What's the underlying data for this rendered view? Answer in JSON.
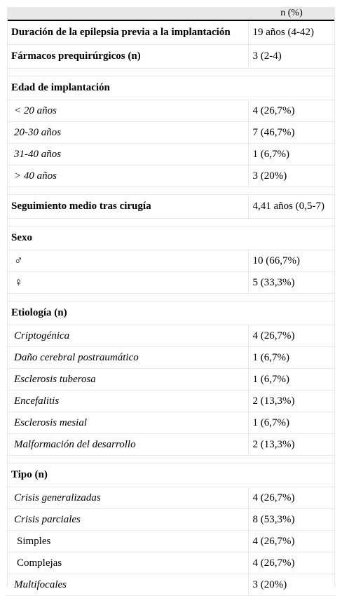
{
  "header": {
    "col1": "",
    "col2": "n (%)"
  },
  "rows": [
    {
      "type": "bold",
      "label": "Duración de la epilepsia previa a la implantación",
      "value": "19 años (4-42)"
    },
    {
      "type": "bold",
      "label": "Fármacos prequirúrgicos (n)",
      "value": "3 (2-4)"
    },
    {
      "type": "spacer"
    },
    {
      "type": "section",
      "label": "Edad de implantación"
    },
    {
      "type": "italic",
      "label": "< 20 años",
      "value": "4 (26,7%)"
    },
    {
      "type": "italic",
      "label": "20-30 años",
      "value": "7 (46,7%)"
    },
    {
      "type": "italic",
      "label": "31-40 años",
      "value": "1 (6,7%)"
    },
    {
      "type": "italic",
      "label": "> 40 años",
      "value": "3 (20%)"
    },
    {
      "type": "spacer"
    },
    {
      "type": "bold",
      "label": "Seguimiento medio tras cirugía",
      "value": "4,41 años (0,5-7)"
    },
    {
      "type": "spacer"
    },
    {
      "type": "section",
      "label": "Sexo"
    },
    {
      "type": "symbol",
      "label": "♂",
      "value": "10 (66,7%)"
    },
    {
      "type": "symbol",
      "label": "♀",
      "value": "5 (33,3%)"
    },
    {
      "type": "spacer"
    },
    {
      "type": "section",
      "label": "Etiología (n)"
    },
    {
      "type": "italic",
      "label": "Criptogénica",
      "value": "4 (26,7%)"
    },
    {
      "type": "italic",
      "label": "Daño cerebral postraumático",
      "value": "1 (6,7%)"
    },
    {
      "type": "italic",
      "label": "Esclerosis tuberosa",
      "value": "1 (6,7%)"
    },
    {
      "type": "italic",
      "label": "Encefalitis",
      "value": "2 (13,3%)"
    },
    {
      "type": "italic",
      "label": "Esclerosis mesial",
      "value": "1 (6,7%)"
    },
    {
      "type": "italic",
      "label": "Malformación del desarrollo",
      "value": "2 (13,3%)"
    },
    {
      "type": "spacer"
    },
    {
      "type": "section",
      "label": "Tipo (n)"
    },
    {
      "type": "italic",
      "label": "Crisis generalizadas",
      "value": "4 (26,7%)"
    },
    {
      "type": "italic",
      "label": "Crisis parciales",
      "value": "8 (53,3%)"
    },
    {
      "type": "sub",
      "label": "Simples",
      "value": "4 (26,7%)"
    },
    {
      "type": "sub",
      "label": "Complejas",
      "value": "4 (26,7%)"
    },
    {
      "type": "italic",
      "label": "Multifocales",
      "value": "3 (20%)"
    }
  ]
}
